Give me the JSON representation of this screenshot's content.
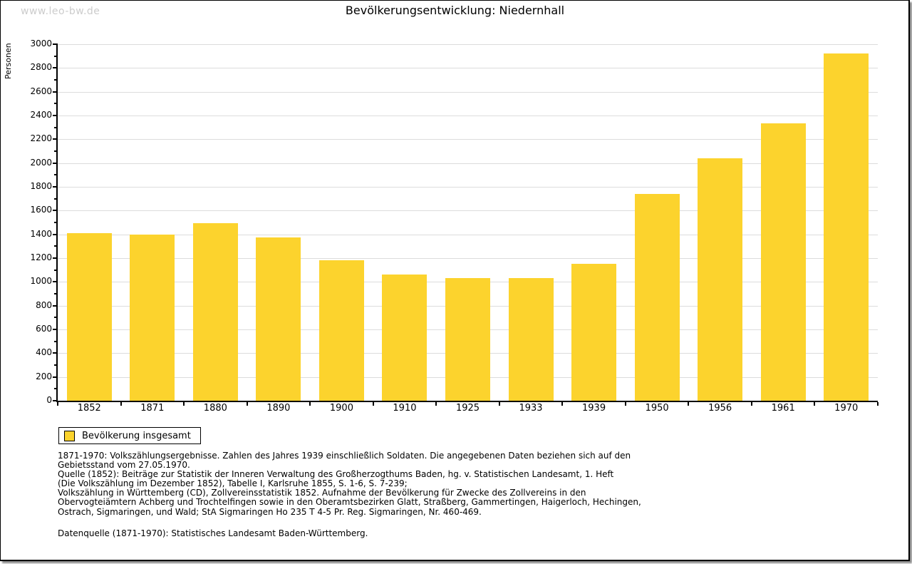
{
  "watermark": "www.leo-bw.de",
  "title": "Bevölkerungsentwicklung: Niedernhall",
  "legend": {
    "label": "Bevölkerung insgesamt",
    "swatch_color": "#fcd32d"
  },
  "chart_data": {
    "type": "bar",
    "title": "Bevölkerungsentwicklung: Niedernhall",
    "xlabel": "",
    "ylabel": "Personen",
    "categories": [
      "1852",
      "1871",
      "1880",
      "1890",
      "1900",
      "1910",
      "1925",
      "1933",
      "1939",
      "1950",
      "1956",
      "1961",
      "1970"
    ],
    "values": [
      1410,
      1400,
      1495,
      1375,
      1180,
      1060,
      1035,
      1035,
      1155,
      1740,
      2040,
      2335,
      2925
    ],
    "series_name": "Bevölkerung insgesamt",
    "ylim": [
      0,
      3000
    ],
    "ytick_major": 200,
    "ytick_minor": 100,
    "grid": true,
    "bar_color": "#fcd32d",
    "gridline_color": "#dcdcdc",
    "legend_position": "below-left"
  },
  "footnote_lines": [
    "1871-1970: Volkszählungsergebnisse. Zahlen des Jahres 1939 einschließlich Soldaten. Die angegebenen Daten beziehen sich auf den",
    "Gebietsstand vom 27.05.1970.",
    "Quelle (1852): Beiträge zur Statistik der Inneren Verwaltung des Großherzogthums Baden, hg. v. Statistischen Landesamt, 1. Heft",
    "(Die Volkszählung im Dezember 1852), Tabelle I, Karlsruhe 1855, S. 1-6, S. 7-239;",
    "Volkszählung in Württemberg (CD), Zollvereinsstatistik 1852. Aufnahme der Bevölkerung für Zwecke des Zollvereins in den",
    "Obervogteiämtern Achberg und Trochtelfingen sowie in den Oberamtsbezirken Glatt, Straßberg, Gammertingen, Haigerloch, Hechingen,",
    "Ostrach, Sigmaringen, und Wald; StA Sigmaringen Ho 235 T 4-5 Pr. Reg. Sigmaringen, Nr. 460-469."
  ],
  "datasource": "Datenquelle (1871-1970): Statistisches Landesamt Baden-Württemberg."
}
